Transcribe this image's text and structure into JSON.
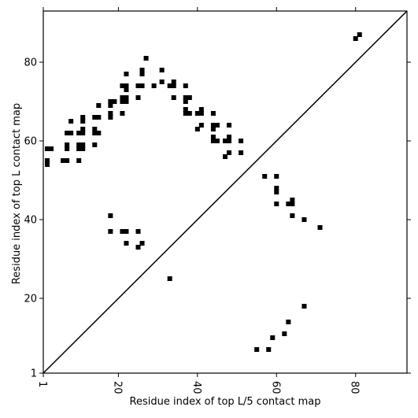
{
  "chart_data": {
    "type": "scatter",
    "xlabel": "Residue index of top L/5 contact map",
    "ylabel": "Residue index of top L contact map",
    "xlim": [
      1,
      93
    ],
    "ylim": [
      1,
      93
    ],
    "xticks": [
      1,
      20,
      40,
      60,
      80
    ],
    "yticks": [
      1,
      20,
      40,
      60,
      80
    ],
    "diagonal": true,
    "marker": "square",
    "color": "#000000",
    "series": [
      {
        "points": [
          [
            2,
            58
          ],
          [
            3,
            58
          ],
          [
            2,
            55
          ],
          [
            2,
            54
          ],
          [
            6,
            55
          ],
          [
            7,
            55
          ],
          [
            10,
            55
          ],
          [
            7,
            59
          ],
          [
            7,
            58
          ],
          [
            7,
            62
          ],
          [
            8,
            62
          ],
          [
            8,
            65
          ],
          [
            10,
            59
          ],
          [
            11,
            59
          ],
          [
            10,
            58
          ],
          [
            11,
            58
          ],
          [
            10,
            62
          ],
          [
            11,
            62
          ],
          [
            11,
            63
          ],
          [
            11,
            65
          ],
          [
            11,
            66
          ],
          [
            14,
            59
          ],
          [
            14,
            62
          ],
          [
            14,
            63
          ],
          [
            15,
            62
          ],
          [
            14,
            66
          ],
          [
            15,
            66
          ],
          [
            15,
            69
          ],
          [
            18,
            70
          ],
          [
            18,
            69
          ],
          [
            19,
            70
          ],
          [
            18,
            67
          ],
          [
            18,
            66
          ],
          [
            21,
            74
          ],
          [
            22,
            74
          ],
          [
            22,
            73
          ],
          [
            21,
            71
          ],
          [
            22,
            71
          ],
          [
            21,
            70
          ],
          [
            22,
            70
          ],
          [
            21,
            67
          ],
          [
            22,
            77
          ],
          [
            25,
            74
          ],
          [
            26,
            74
          ],
          [
            25,
            71
          ],
          [
            26,
            77
          ],
          [
            26,
            78
          ],
          [
            27,
            81
          ],
          [
            29,
            74
          ],
          [
            31,
            75
          ],
          [
            31,
            78
          ],
          [
            33,
            74
          ],
          [
            34,
            74
          ],
          [
            34,
            75
          ],
          [
            34,
            71
          ],
          [
            37,
            74
          ],
          [
            37,
            71
          ],
          [
            38,
            71
          ],
          [
            37,
            70
          ],
          [
            37,
            68
          ],
          [
            37,
            67
          ],
          [
            38,
            67
          ],
          [
            40,
            67
          ],
          [
            41,
            67
          ],
          [
            41,
            68
          ],
          [
            40,
            63
          ],
          [
            41,
            64
          ],
          [
            44,
            67
          ],
          [
            44,
            64
          ],
          [
            45,
            64
          ],
          [
            44,
            63
          ],
          [
            44,
            61
          ],
          [
            44,
            60
          ],
          [
            45,
            60
          ],
          [
            47,
            60
          ],
          [
            48,
            60
          ],
          [
            48,
            61
          ],
          [
            48,
            64
          ],
          [
            47,
            56
          ],
          [
            48,
            57
          ],
          [
            51,
            60
          ],
          [
            51,
            57
          ],
          [
            57,
            51
          ],
          [
            60,
            51
          ],
          [
            60,
            48
          ],
          [
            60,
            47
          ],
          [
            60,
            44
          ],
          [
            63,
            44
          ],
          [
            64,
            44
          ],
          [
            64,
            45
          ],
          [
            64,
            41
          ],
          [
            67,
            40
          ],
          [
            71,
            38
          ],
          [
            80,
            86
          ],
          [
            81,
            87
          ],
          [
            18,
            41
          ],
          [
            18,
            37
          ],
          [
            21,
            37
          ],
          [
            22,
            37
          ],
          [
            25,
            37
          ],
          [
            22,
            34
          ],
          [
            25,
            33
          ],
          [
            26,
            34
          ],
          [
            33,
            25
          ],
          [
            67,
            18
          ],
          [
            63,
            14
          ],
          [
            62,
            11
          ],
          [
            59,
            10
          ],
          [
            55,
            7
          ],
          [
            58,
            7
          ]
        ]
      }
    ]
  }
}
